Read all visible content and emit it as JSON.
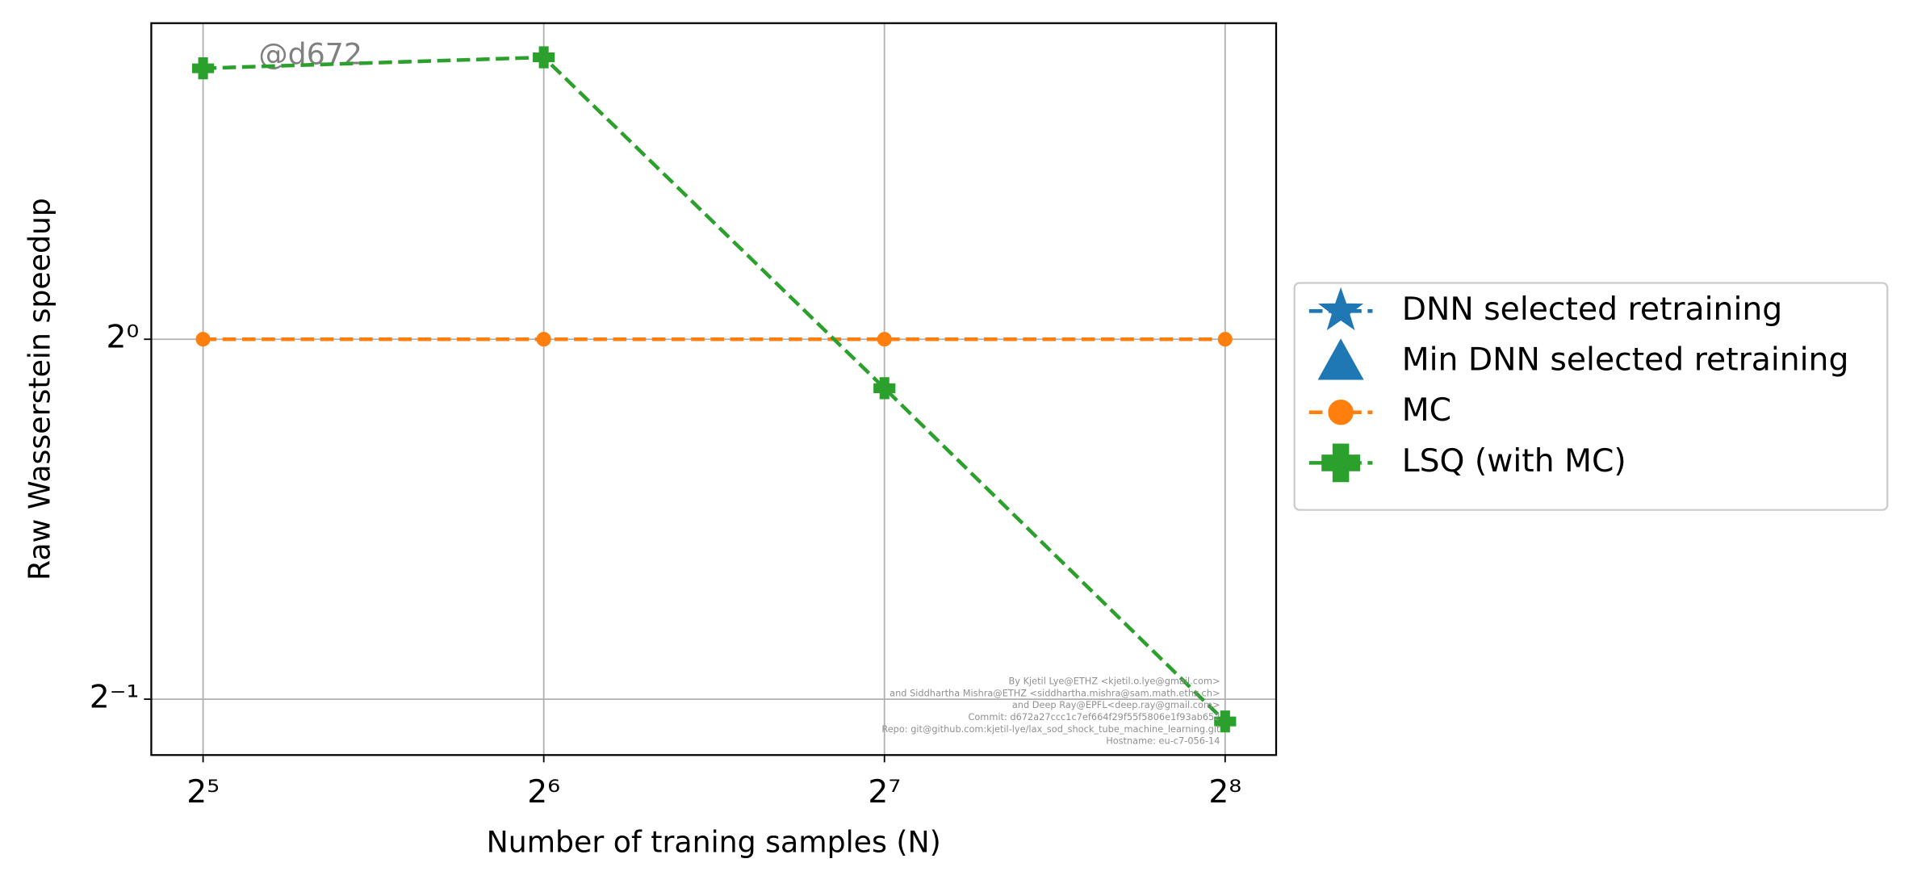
{
  "chart_data": {
    "type": "line",
    "xlabel": "Number of traning samples (N)",
    "ylabel": "Raw Wasserstein speedup",
    "xscale": "log2",
    "yscale": "log2",
    "x": [
      32,
      64,
      128,
      256
    ],
    "xlim": [
      28.8,
      284
    ],
    "ylim": [
      0.449,
      1.838
    ],
    "xticks": [
      {
        "value": 32,
        "label": "2⁵"
      },
      {
        "value": 64,
        "label": "2⁶"
      },
      {
        "value": 128,
        "label": "2⁷"
      },
      {
        "value": 256,
        "label": "2⁸"
      }
    ],
    "yticks": [
      {
        "value": 0.5,
        "label": "2⁻¹"
      },
      {
        "value": 1,
        "label": "2⁰"
      }
    ],
    "grid": true,
    "legend": "right",
    "series": [
      {
        "name": "DNN selected retraining",
        "color": "#1f77b4",
        "marker": "star",
        "linestyle": "dashed",
        "values": [
          null,
          null,
          null,
          null
        ]
      },
      {
        "name": "Min DNN selected retraining",
        "color": "#1f77b4",
        "marker": "triangle",
        "linestyle": "none",
        "values": [
          null,
          null,
          null,
          null
        ]
      },
      {
        "name": "MC",
        "color": "#ff7f0e",
        "marker": "circle",
        "linestyle": "dashed",
        "values": [
          1,
          1,
          1,
          1
        ]
      },
      {
        "name": "LSQ (with MC)",
        "color": "#2ca02c",
        "marker": "plus",
        "linestyle": "dashed",
        "values": [
          1.685,
          1.721,
          0.91,
          0.479
        ]
      }
    ],
    "watermark": "@d672",
    "footnote": [
      "By Kjetil Lye@ETHZ <kjetil.o.lye@gmail.com>",
      "and Siddhartha Mishra@ETHZ <siddhartha.mishra@sam.math.ethz.ch>",
      "and Deep Ray@EPFL<deep.ray@gmail.com>",
      "Commit: d672a27ccc1c7ef664f29f55f5806e1f93ab652",
      "Repo: git@github.com:kjetil-lye/lax_sod_shock_tube_machine_learning.git",
      "Hostname: eu-c7-056-14"
    ]
  }
}
